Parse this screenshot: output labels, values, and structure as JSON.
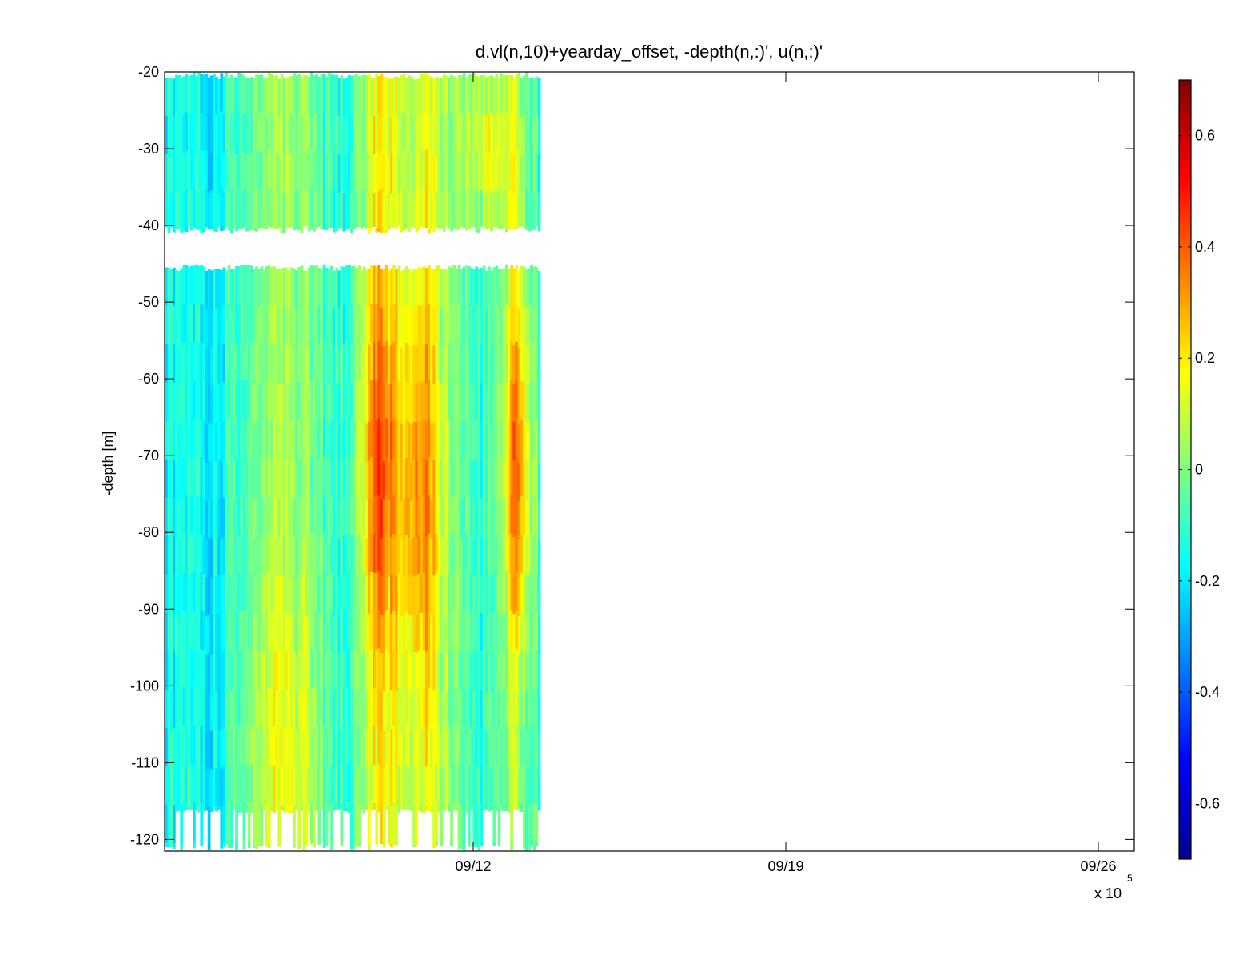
{
  "chart_data": {
    "type": "heatmap",
    "title": "d.vl(n,10)+yearday_offset, -depth(n,:)', u(n,:)'",
    "xlabel": "",
    "ylabel": "-depth [m]",
    "x_exponent_label": "x 10",
    "x_exponent_power": "5",
    "x_ticks": [
      "09/12",
      "09/19",
      "09/26"
    ],
    "x_tick_days": [
      12,
      19,
      26
    ],
    "xlim_days": [
      5.1,
      26.75
    ],
    "ylim": [
      -121,
      -20
    ],
    "y_ticks": [
      -20,
      -30,
      -40,
      -50,
      -60,
      -70,
      -80,
      -90,
      -100,
      -110,
      -120
    ],
    "y_tick_labels": [
      "-20",
      "-30",
      "-40",
      "-50",
      "-60",
      "-70",
      "-80",
      "-90",
      "-100",
      "-110",
      "-120"
    ],
    "colorbar": {
      "colormap": "jet",
      "clim": [
        -0.7,
        0.7
      ],
      "ticks": [
        0.6,
        0.4,
        0.2,
        0,
        -0.2,
        -0.4,
        -0.6
      ],
      "tick_labels": [
        "0.6",
        "0.4",
        "0.2",
        "0",
        "-0.2",
        "-0.4",
        "-0.6"
      ]
    },
    "data_x_range_days": [
      5.1,
      13.5
    ],
    "depth_bands": [
      {
        "name": "upper",
        "top": -20.5,
        "bottom": -40.5
      },
      {
        "name": "lower",
        "top": -45.5,
        "bottom": -121
      }
    ],
    "features": [
      {
        "x_day": 9.9,
        "depth_range": [
          -45,
          -121
        ],
        "max_value": 0.65
      },
      {
        "x_day": 10.8,
        "depth_range": [
          -45,
          -121
        ],
        "max_value": 0.55
      },
      {
        "x_day": 13.0,
        "depth_range": [
          -50,
          -121
        ],
        "max_value": 0.55
      },
      {
        "x_day": 7.8,
        "depth_range": [
          -20,
          -121
        ],
        "max_value": 0.35
      }
    ],
    "grid": false
  }
}
